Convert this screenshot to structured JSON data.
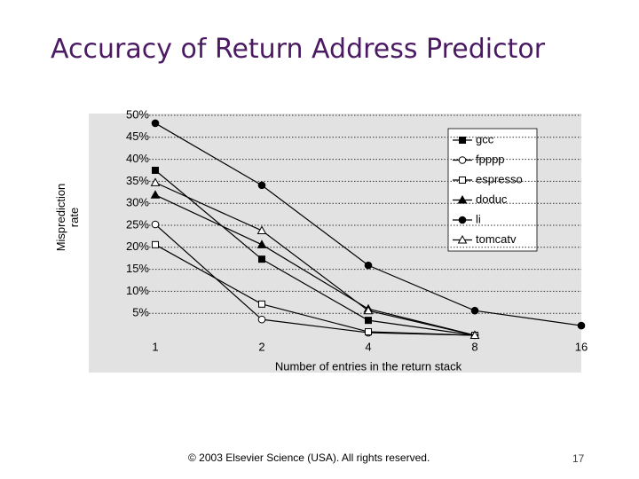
{
  "slide_title": "Accuracy of Return Address Predictor",
  "footer": "© 2003 Elsevier Science (USA). All rights reserved.",
  "page_number": "17",
  "chart_data": {
    "type": "line",
    "y_label": "Misprediction rate",
    "x_label": "Number of entries in the return stack",
    "categories": [
      "1",
      "2",
      "4",
      "8",
      "16"
    ],
    "ylim": [
      0,
      50
    ],
    "yticks": [
      {
        "value": 5,
        "label": "5%"
      },
      {
        "value": 10,
        "label": "10%"
      },
      {
        "value": 15,
        "label": "15%"
      },
      {
        "value": 20,
        "label": "20%"
      },
      {
        "value": 25,
        "label": "25%"
      },
      {
        "value": 30,
        "label": "30%"
      },
      {
        "value": 35,
        "label": "35%"
      },
      {
        "value": 40,
        "label": "40%"
      },
      {
        "value": 45,
        "label": "45%"
      },
      {
        "value": 50,
        "label": "50%"
      }
    ],
    "grid": true,
    "legend": "top-right",
    "series": [
      {
        "name": "gcc",
        "color": "#000000",
        "marker": "filled-square",
        "values": [
          37.5,
          17.3,
          3.4,
          0,
          null
        ]
      },
      {
        "name": "fpppp",
        "color": "#000000",
        "marker": "open-circle",
        "values": [
          25.2,
          3.6,
          0.6,
          0,
          null
        ]
      },
      {
        "name": "espresso",
        "color": "#000000",
        "marker": "open-square",
        "values": [
          20.6,
          7.1,
          0.8,
          0,
          null
        ]
      },
      {
        "name": "doduc",
        "color": "#000000",
        "marker": "filled-triangle",
        "values": [
          31.9,
          20.6,
          6.0,
          0,
          null
        ]
      },
      {
        "name": "li",
        "color": "#000000",
        "marker": "filled-circle",
        "values": [
          48.2,
          34.1,
          15.9,
          5.6,
          2.2
        ]
      },
      {
        "name": "tomcatv",
        "color": "#000000",
        "marker": "open-triangle",
        "values": [
          34.7,
          23.8,
          5.6,
          0,
          null
        ]
      }
    ]
  }
}
